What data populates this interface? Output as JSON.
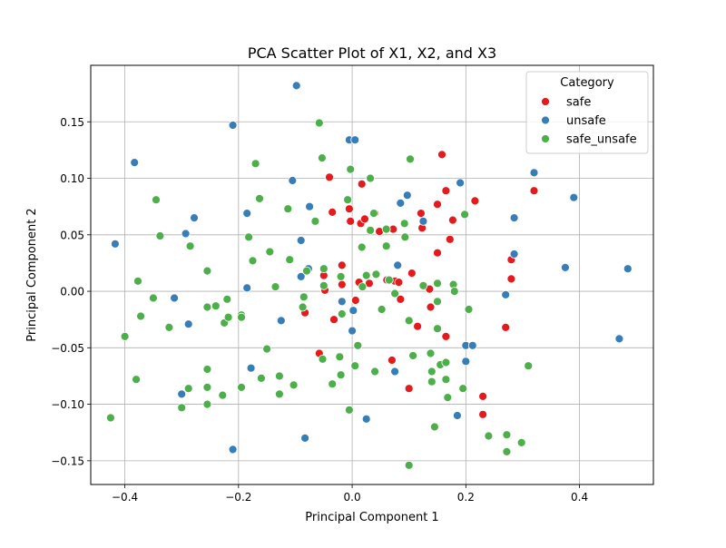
{
  "chart_data": {
    "type": "scatter",
    "title": "PCA Scatter Plot of X1, X2, and X3",
    "xlabel": "Principal Component 1",
    "ylabel": "Principal Component 2",
    "xlim": [
      -0.46,
      0.53
    ],
    "ylim": [
      -0.171,
      0.2
    ],
    "x_ticks": [
      -0.4,
      -0.2,
      0.0,
      0.2,
      0.4
    ],
    "x_tick_labels": [
      "−0.4",
      "−0.2",
      "0.0",
      "0.2",
      "0.4"
    ],
    "y_ticks": [
      -0.15,
      -0.1,
      -0.05,
      0.0,
      0.05,
      0.1,
      0.15
    ],
    "y_tick_labels": [
      "−0.15",
      "−0.10",
      "−0.05",
      "0.00",
      "0.05",
      "0.10",
      "0.15"
    ],
    "grid": true,
    "legend": {
      "title": "Category",
      "placement": "top-right"
    },
    "series": [
      {
        "name": "safe",
        "color": "#e41a1c",
        "points": [
          [
            -0.04,
            0.101
          ],
          [
            0.017,
            0.095
          ],
          [
            -0.035,
            0.07
          ],
          [
            -0.005,
            0.073
          ],
          [
            0.04,
            0.069
          ],
          [
            -0.003,
            0.062
          ],
          [
            0.015,
            0.06
          ],
          [
            0.022,
            0.064
          ],
          [
            0.048,
            0.053
          ],
          [
            0.072,
            0.055
          ],
          [
            0.121,
            0.069
          ],
          [
            0.123,
            0.056
          ],
          [
            0.158,
            0.121
          ],
          [
            0.165,
            0.089
          ],
          [
            0.15,
            0.077
          ],
          [
            0.216,
            0.08
          ],
          [
            0.32,
            0.089
          ],
          [
            0.172,
            0.046
          ],
          [
            0.177,
            0.063
          ],
          [
            0.15,
            0.034
          ],
          [
            0.28,
            0.028
          ],
          [
            0.28,
            0.011
          ],
          [
            0.105,
            0.016
          ],
          [
            0.136,
            0.002
          ],
          [
            0.075,
            0.009
          ],
          [
            0.061,
            0.01
          ],
          [
            0.03,
            0.007
          ],
          [
            0.012,
            0.008
          ],
          [
            0.082,
            0.008
          ],
          [
            0.085,
            -0.007
          ],
          [
            -0.018,
            0.023
          ],
          [
            -0.05,
            0.014
          ],
          [
            -0.018,
            0.006
          ],
          [
            -0.048,
            0.001
          ],
          [
            0.006,
            -0.008
          ],
          [
            -0.083,
            -0.019
          ],
          [
            -0.032,
            -0.025
          ],
          [
            0.115,
            -0.031
          ],
          [
            0.138,
            -0.014
          ],
          [
            0.165,
            -0.04
          ],
          [
            0.27,
            -0.032
          ],
          [
            0.07,
            -0.061
          ],
          [
            -0.058,
            -0.055
          ],
          [
            0.1,
            -0.086
          ],
          [
            0.23,
            -0.093
          ],
          [
            0.23,
            -0.109
          ]
        ]
      },
      {
        "name": "unsafe",
        "color": "#377eb8",
        "points": [
          [
            -0.098,
            0.182
          ],
          [
            -0.21,
            0.147
          ],
          [
            -0.383,
            0.114
          ],
          [
            -0.005,
            0.134
          ],
          [
            0.005,
            0.134
          ],
          [
            -0.105,
            0.098
          ],
          [
            0.097,
            0.085
          ],
          [
            0.19,
            0.096
          ],
          [
            0.32,
            0.105
          ],
          [
            0.39,
            0.083
          ],
          [
            -0.075,
            0.075
          ],
          [
            -0.185,
            0.069
          ],
          [
            -0.278,
            0.065
          ],
          [
            -0.293,
            0.051
          ],
          [
            0.085,
            0.078
          ],
          [
            0.285,
            0.065
          ],
          [
            -0.09,
            0.045
          ],
          [
            -0.417,
            0.042
          ],
          [
            0.125,
            0.062
          ],
          [
            0.285,
            0.033
          ],
          [
            0.08,
            0.023
          ],
          [
            -0.09,
            0.013
          ],
          [
            -0.077,
            0.02
          ],
          [
            0.375,
            0.021
          ],
          [
            0.485,
            0.02
          ],
          [
            -0.185,
            0.003
          ],
          [
            -0.313,
            -0.006
          ],
          [
            -0.018,
            -0.009
          ],
          [
            0.002,
            -0.017
          ],
          [
            0.27,
            -0.003
          ],
          [
            -0.288,
            -0.029
          ],
          [
            -0.125,
            -0.026
          ],
          [
            0.0,
            -0.035
          ],
          [
            0.2,
            -0.048
          ],
          [
            0.212,
            -0.048
          ],
          [
            0.2,
            -0.062
          ],
          [
            0.47,
            -0.042
          ],
          [
            -0.178,
            -0.068
          ],
          [
            0.075,
            -0.071
          ],
          [
            -0.3,
            -0.091
          ],
          [
            0.025,
            -0.113
          ],
          [
            0.185,
            -0.11
          ],
          [
            -0.083,
            -0.13
          ],
          [
            -0.21,
            -0.14
          ]
        ]
      },
      {
        "name": "safe_unsafe",
        "color": "#4daf4a",
        "points": [
          [
            -0.058,
            0.149
          ],
          [
            -0.053,
            0.118
          ],
          [
            -0.17,
            0.113
          ],
          [
            0.102,
            0.117
          ],
          [
            -0.003,
            0.108
          ],
          [
            0.032,
            0.1
          ],
          [
            -0.008,
            0.081
          ],
          [
            -0.345,
            0.081
          ],
          [
            -0.163,
            0.082
          ],
          [
            -0.113,
            0.073
          ],
          [
            -0.065,
            0.062
          ],
          [
            0.038,
            0.069
          ],
          [
            0.092,
            0.06
          ],
          [
            0.198,
            0.068
          ],
          [
            -0.338,
            0.049
          ],
          [
            -0.182,
            0.048
          ],
          [
            -0.285,
            0.04
          ],
          [
            -0.145,
            0.035
          ],
          [
            0.032,
            0.054
          ],
          [
            0.06,
            0.055
          ],
          [
            0.093,
            0.048
          ],
          [
            0.017,
            0.039
          ],
          [
            0.06,
            0.04
          ],
          [
            -0.175,
            0.027
          ],
          [
            -0.11,
            0.028
          ],
          [
            -0.255,
            0.018
          ],
          [
            -0.05,
            0.02
          ],
          [
            -0.08,
            0.018
          ],
          [
            -0.377,
            0.009
          ],
          [
            -0.135,
            0.004
          ],
          [
            -0.05,
            0.005
          ],
          [
            -0.02,
            0.013
          ],
          [
            0.025,
            0.014
          ],
          [
            0.042,
            0.015
          ],
          [
            0.018,
            0.004
          ],
          [
            0.065,
            0.01
          ],
          [
            0.125,
            0.005
          ],
          [
            0.15,
            0.007
          ],
          [
            0.178,
            0.006
          ],
          [
            0.18,
            0.0
          ],
          [
            -0.35,
            -0.006
          ],
          [
            -0.22,
            -0.007
          ],
          [
            -0.085,
            -0.005
          ],
          [
            -0.24,
            -0.013
          ],
          [
            -0.255,
            -0.014
          ],
          [
            -0.322,
            -0.032
          ],
          [
            -0.372,
            -0.022
          ],
          [
            -0.225,
            -0.028
          ],
          [
            -0.218,
            -0.023
          ],
          [
            -0.195,
            -0.021
          ],
          [
            -0.195,
            -0.023
          ],
          [
            -0.087,
            -0.014
          ],
          [
            -0.018,
            -0.02
          ],
          [
            0.075,
            -0.002
          ],
          [
            0.052,
            -0.016
          ],
          [
            0.15,
            -0.009
          ],
          [
            0.205,
            -0.016
          ],
          [
            0.1,
            -0.026
          ],
          [
            0.15,
            -0.033
          ],
          [
            -0.15,
            -0.051
          ],
          [
            0.01,
            -0.048
          ],
          [
            -0.052,
            -0.06
          ],
          [
            -0.022,
            -0.058
          ],
          [
            0.107,
            -0.057
          ],
          [
            0.138,
            -0.055
          ],
          [
            -0.4,
            -0.04
          ],
          [
            -0.38,
            -0.078
          ],
          [
            -0.255,
            -0.069
          ],
          [
            -0.02,
            -0.074
          ],
          [
            -0.16,
            -0.077
          ],
          [
            -0.128,
            -0.075
          ],
          [
            0.005,
            -0.066
          ],
          [
            0.04,
            -0.071
          ],
          [
            0.14,
            -0.071
          ],
          [
            0.155,
            -0.065
          ],
          [
            0.165,
            -0.063
          ],
          [
            0.165,
            -0.078
          ],
          [
            0.31,
            -0.066
          ],
          [
            -0.288,
            -0.086
          ],
          [
            -0.255,
            -0.085
          ],
          [
            -0.195,
            -0.085
          ],
          [
            -0.128,
            -0.091
          ],
          [
            -0.103,
            -0.083
          ],
          [
            -0.035,
            -0.082
          ],
          [
            0.14,
            -0.08
          ],
          [
            0.195,
            -0.086
          ],
          [
            0.168,
            -0.094
          ],
          [
            -0.3,
            -0.103
          ],
          [
            -0.255,
            -0.1
          ],
          [
            -0.228,
            -0.092
          ],
          [
            -0.005,
            -0.105
          ],
          [
            0.145,
            -0.12
          ],
          [
            0.24,
            -0.128
          ],
          [
            0.272,
            -0.127
          ],
          [
            0.298,
            -0.134
          ],
          [
            0.272,
            -0.142
          ],
          [
            -0.425,
            -0.112
          ],
          [
            0.1,
            -0.154
          ]
        ]
      }
    ]
  }
}
